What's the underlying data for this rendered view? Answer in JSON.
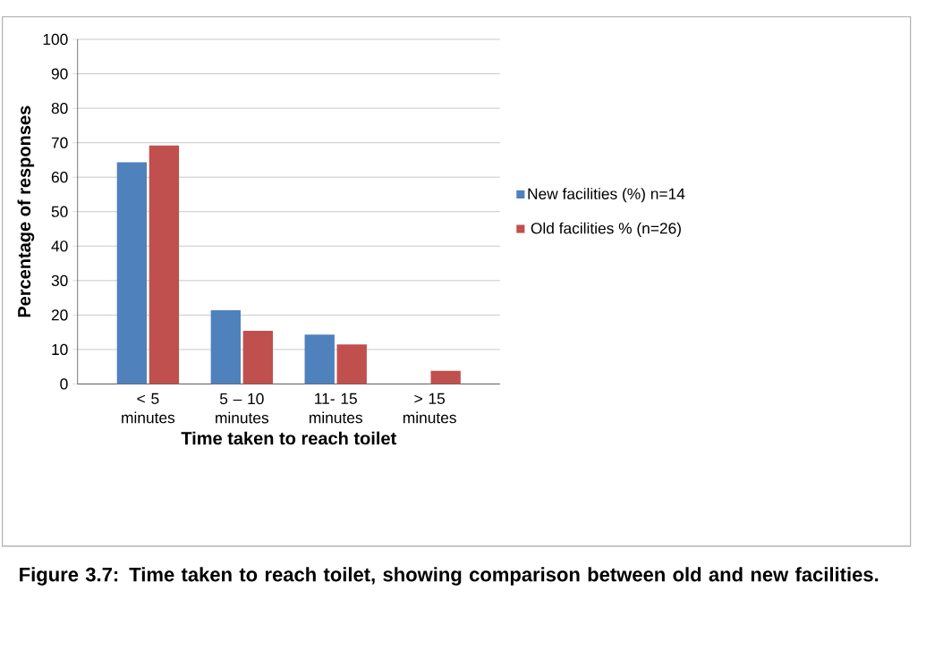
{
  "chart_data": {
    "type": "bar",
    "xlabel": "Time taken to reach toilet",
    "ylabel": "Percentage of responses",
    "categories": [
      "< 5 minutes",
      "5 – 10 minutes",
      "11- 15 minutes",
      "> 15 minutes"
    ],
    "series": [
      {
        "name": "New facilities (%) n=14",
        "color": "#4f81bd",
        "values": [
          64.3,
          21.4,
          14.3,
          0
        ]
      },
      {
        "name": "Old facilities % (n=26)",
        "color": "#c0504d",
        "values": [
          69.2,
          15.4,
          11.5,
          3.8
        ]
      }
    ],
    "ylim": [
      0,
      100
    ],
    "yticks": [
      0,
      10,
      20,
      30,
      40,
      50,
      60,
      70,
      80,
      90,
      100
    ],
    "grid": "y",
    "legend": "right",
    "annotations": [
      "Figure 3.7: Time taken to reach toilet, showing comparison between old and new facilities."
    ]
  }
}
